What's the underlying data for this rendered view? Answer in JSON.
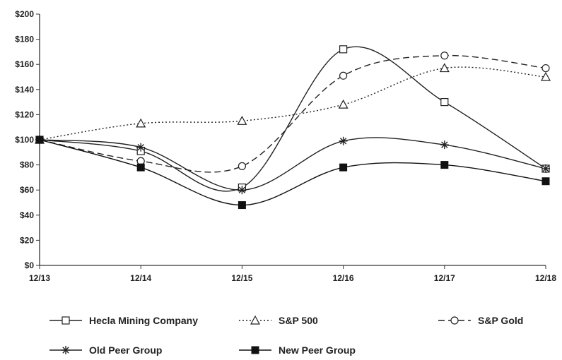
{
  "chart_data": {
    "type": "line",
    "categories": [
      "12/13",
      "12/14",
      "12/15",
      "12/16",
      "12/17",
      "12/18"
    ],
    "ylim": [
      0,
      200
    ],
    "yticks": [
      0,
      20,
      40,
      60,
      80,
      100,
      120,
      140,
      160,
      180,
      200
    ],
    "ytick_labels": [
      "$0",
      "$20",
      "$40",
      "$60",
      "$80",
      "$100",
      "$120",
      "$140",
      "$160",
      "$180",
      "$200"
    ],
    "grid": false,
    "legend_position": "bottom",
    "series": [
      {
        "name": "Hecla Mining Company",
        "values": [
          100,
          91,
          62,
          172,
          130,
          77
        ],
        "marker": "open-square",
        "dash": "solid",
        "color": "#222222"
      },
      {
        "name": "S&P 500",
        "values": [
          100,
          113,
          115,
          128,
          157,
          150
        ],
        "marker": "open-triangle",
        "dash": "dotted",
        "color": "#222222"
      },
      {
        "name": "S&P Gold",
        "values": [
          100,
          83,
          79,
          151,
          167,
          157
        ],
        "marker": "open-circle",
        "dash": "dashed",
        "color": "#222222"
      },
      {
        "name": "Old Peer Group",
        "values": [
          100,
          94,
          60,
          99,
          96,
          77
        ],
        "marker": "asterisk",
        "dash": "solid",
        "color": "#222222"
      },
      {
        "name": "New Peer Group",
        "values": [
          100,
          78,
          48,
          78,
          80,
          67
        ],
        "marker": "filled-square",
        "dash": "solid",
        "color": "#111111"
      }
    ]
  }
}
